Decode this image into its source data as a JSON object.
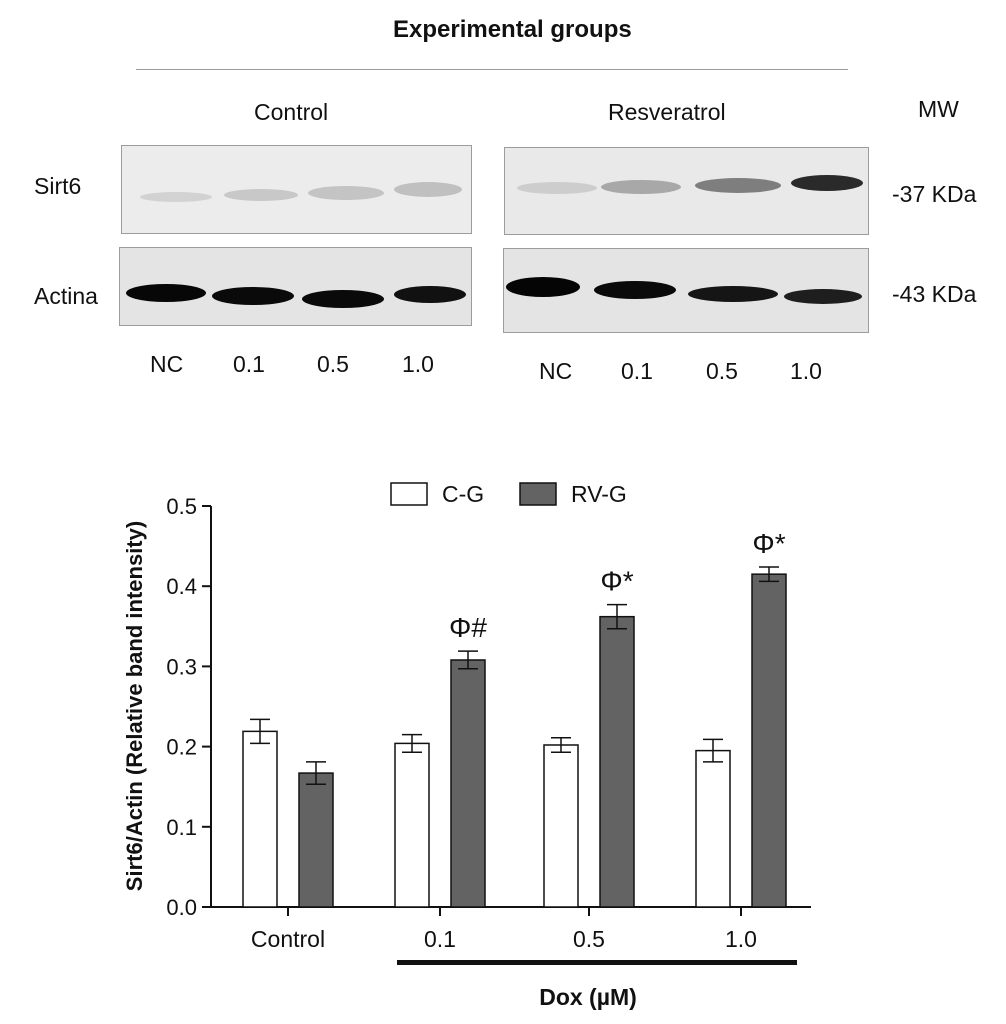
{
  "header": {
    "title": "Experimental groups",
    "group_control": "Control",
    "group_resveratrol": "Resveratrol",
    "mw": "MW"
  },
  "blot": {
    "row_sirt6": "Sirt6",
    "row_actin": "Actina",
    "mw_sirt6": "-37 KDa",
    "mw_actin": "-43 KDa",
    "lanes_control": [
      "NC",
      "0.1",
      "0.5",
      "1.0"
    ],
    "lanes_resveratrol": [
      "NC",
      "0.1",
      "0.5",
      "1.0"
    ]
  },
  "chart_data": {
    "type": "bar",
    "categories": [
      "Control",
      "0.1",
      "0.5",
      "1.0"
    ],
    "ylabel": "Sirt6/Actin (Relative band intensity)",
    "xlabel": "Dox (µM)",
    "ylim": [
      0,
      0.5
    ],
    "yticks": [
      "0.0",
      "0.1",
      "0.2",
      "0.3",
      "0.4",
      "0.5"
    ],
    "legend_position": "top-center",
    "series": [
      {
        "name": "C-G",
        "color": "#ffffff",
        "values": [
          0.219,
          0.204,
          0.202,
          0.195
        ],
        "errors": [
          0.015,
          0.011,
          0.009,
          0.014
        ],
        "annotations": [
          "",
          "",
          "",
          ""
        ]
      },
      {
        "name": "RV-G",
        "color": "#636363",
        "values": [
          0.167,
          0.308,
          0.362,
          0.415
        ],
        "errors": [
          0.014,
          0.011,
          0.015,
          0.009
        ],
        "annotations": [
          "",
          "Φ#",
          "Φ*",
          "Φ*"
        ]
      }
    ]
  }
}
